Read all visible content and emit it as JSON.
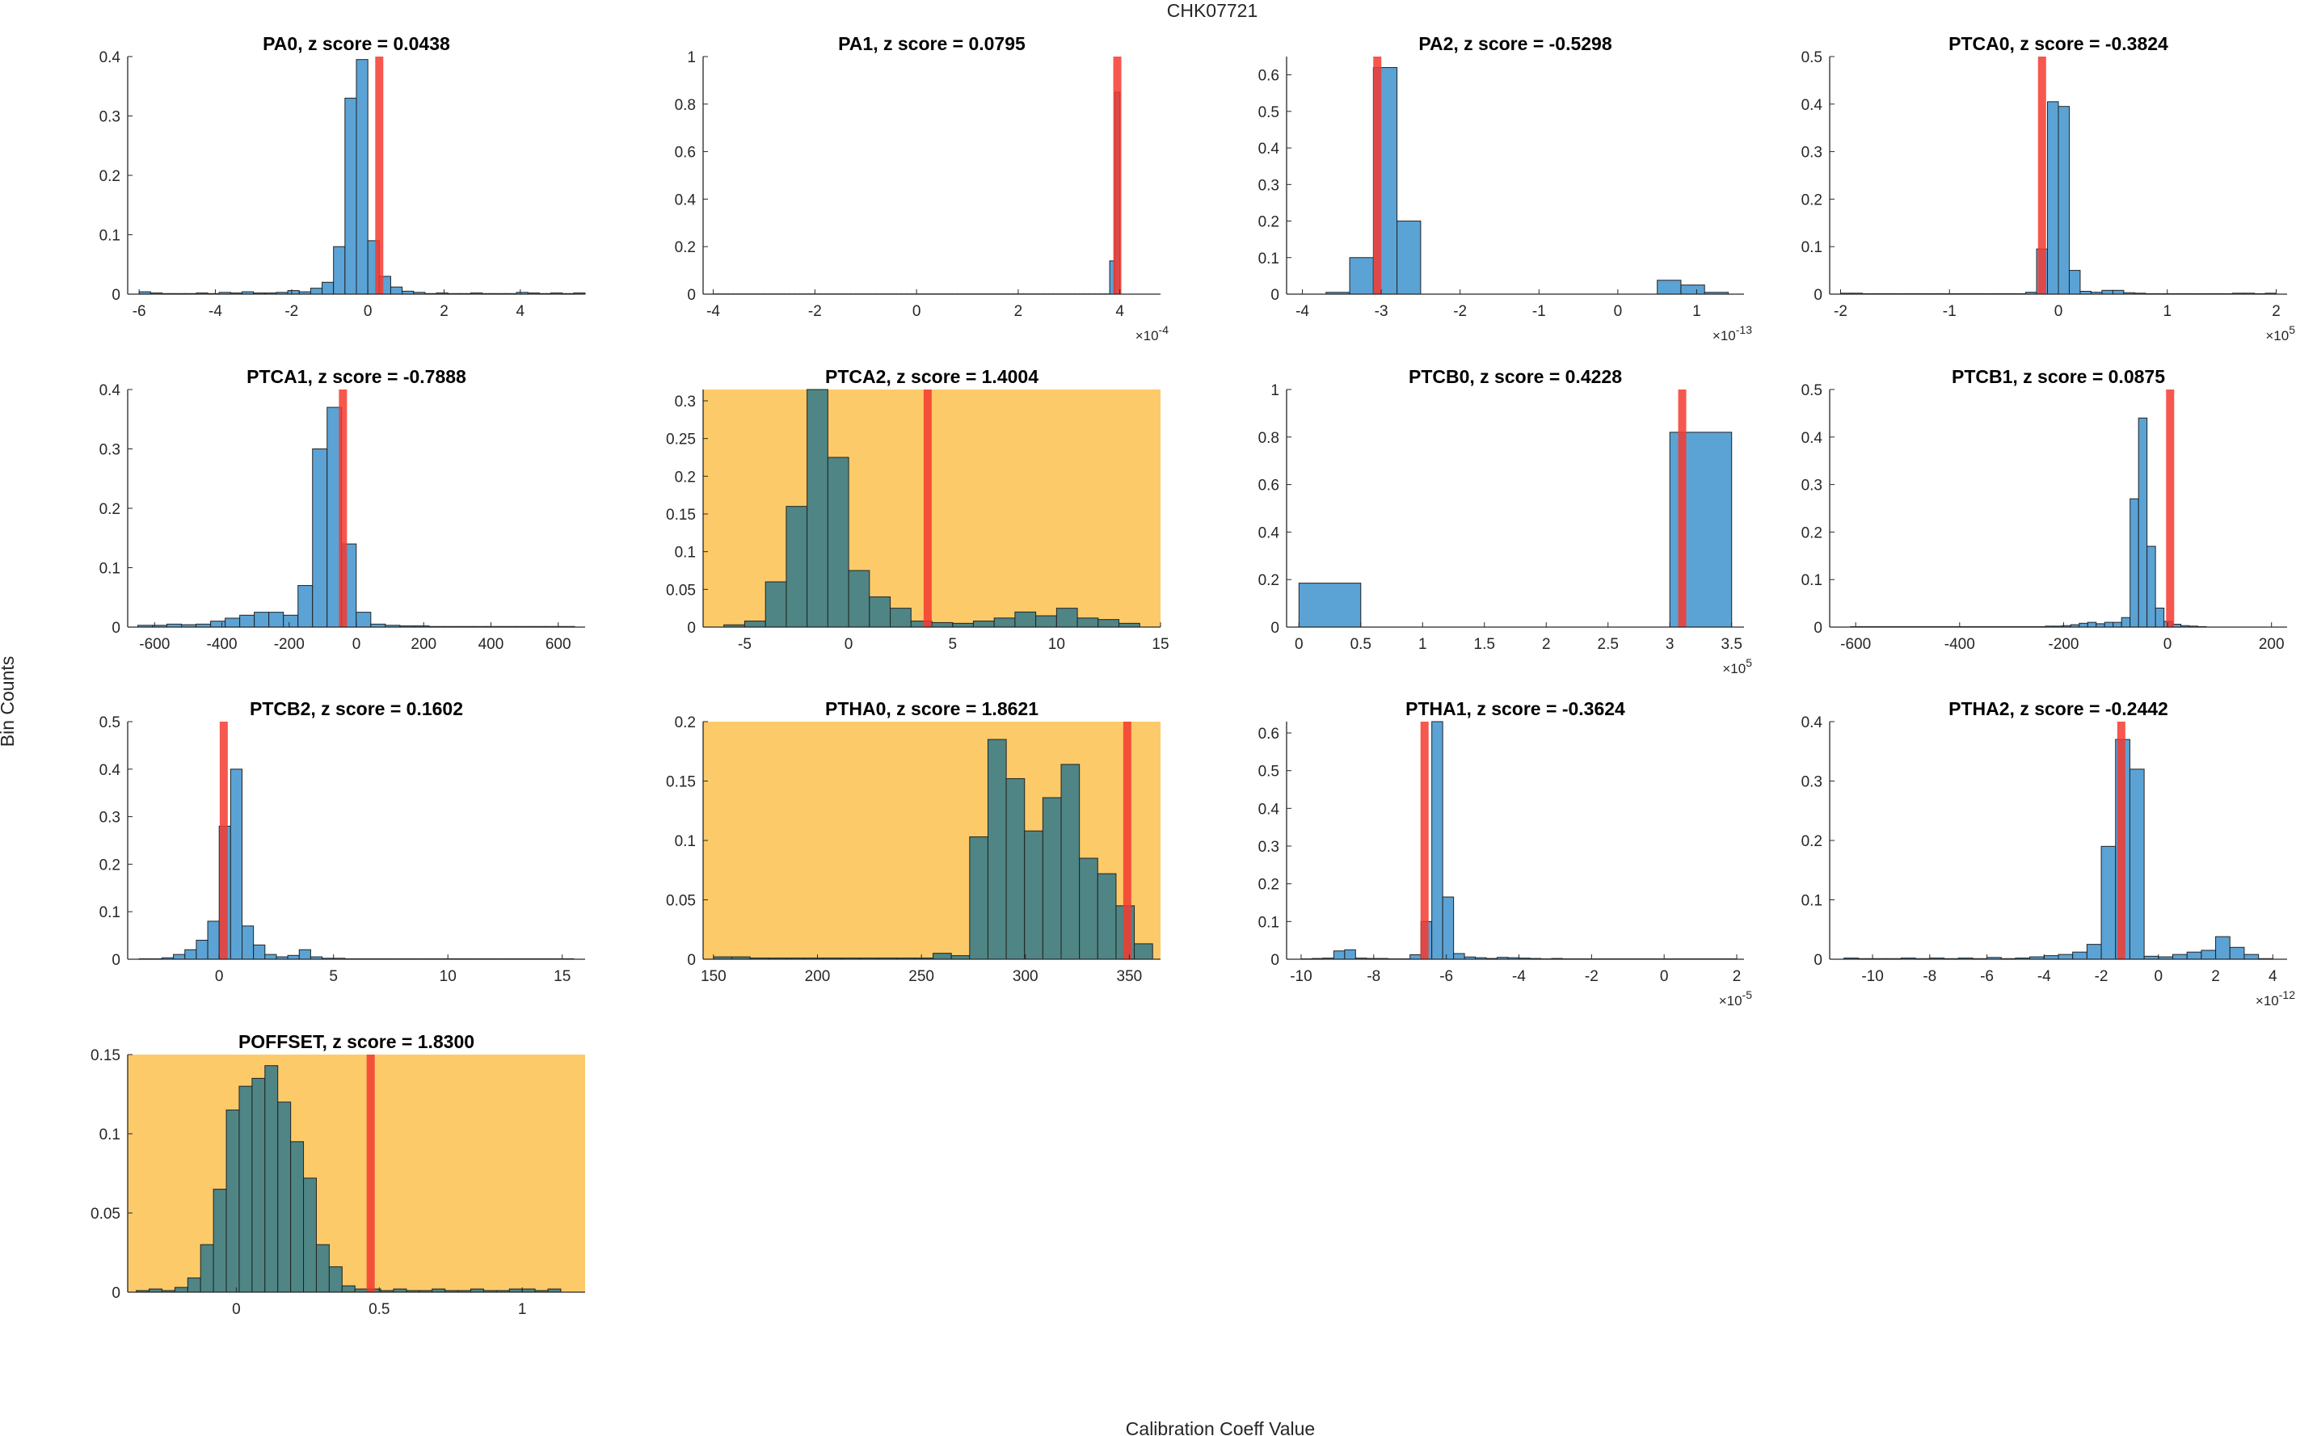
{
  "figure": {
    "title": "CHK07721",
    "xlabel": "Calibration Coeff Value",
    "ylabel": "Bin Counts",
    "colors": {
      "bar": "#5ba3d5",
      "bar_flagged": "#4f8585",
      "bar_edge": "#222222",
      "flag_background": "#fdca6a",
      "marker": "#f53a2f",
      "axis": "#262626"
    }
  },
  "chart_data": [
    {
      "type": "bar",
      "title": "PA0, z score = 0.0438",
      "flagged": false,
      "xlim": [
        -6.3,
        5.7
      ],
      "ylim": [
        0,
        0.4
      ],
      "xticks": [
        -6,
        -4,
        -2,
        0,
        2,
        4
      ],
      "xtick_labels": [
        "-6",
        "-4",
        "-2",
        "0",
        "2",
        "4"
      ],
      "yticks": [
        0,
        0.1,
        0.2,
        0.3,
        0.4
      ],
      "ytick_labels": [
        "0",
        "0.1",
        "0.2",
        "0.3",
        "0.4"
      ],
      "exponent": "",
      "bin_start": -6,
      "bin_width": 0.3,
      "values": [
        0.004,
        0.002,
        0.001,
        0.001,
        0.001,
        0.002,
        0.001,
        0.003,
        0.002,
        0.004,
        0.002,
        0.002,
        0.003,
        0.006,
        0.004,
        0.01,
        0.02,
        0.08,
        0.33,
        0.395,
        0.09,
        0.03,
        0.012,
        0.005,
        0.003,
        0.001,
        0.002,
        0.001,
        0.001,
        0.002,
        0.001,
        0.001,
        0.001,
        0.003,
        0.002,
        0.001,
        0.002,
        0.001,
        0.002
      ],
      "marker": 0.3
    },
    {
      "type": "bar",
      "title": "PA1, z score = 0.0795",
      "flagged": false,
      "xlim": [
        -4.2,
        4.8
      ],
      "ylim": [
        0,
        1
      ],
      "xticks": [
        -4,
        -2,
        0,
        2,
        4
      ],
      "xtick_labels": [
        "-4",
        "-2",
        "0",
        "2",
        "4"
      ],
      "yticks": [
        0,
        0.2,
        0.4,
        0.6,
        0.8,
        1
      ],
      "ytick_labels": [
        "0",
        "0.2",
        "0.4",
        "0.6",
        "0.8",
        "1"
      ],
      "exponent": "×10-4",
      "bin_start": -4,
      "bin_width": 0.1,
      "values": [
        0.001,
        0.001,
        0.001,
        0.001,
        0.001,
        0.001,
        0.001,
        0.001,
        0.001,
        0.001,
        0.001,
        0.001,
        0.001,
        0.001,
        0.001,
        0.001,
        0.001,
        0.001,
        0.001,
        0.001,
        0.001,
        0.001,
        0.001,
        0.001,
        0.001,
        0.001,
        0.001,
        0.001,
        0.001,
        0.001,
        0.001,
        0.001,
        0.001,
        0.001,
        0.001,
        0.001,
        0.001,
        0.001,
        0.001,
        0.001,
        0.001,
        0.001,
        0.001,
        0.001,
        0.001,
        0.001,
        0.001,
        0.001,
        0.001,
        0.001,
        0.001,
        0.001,
        0.001,
        0.001,
        0.001,
        0.001,
        0.001,
        0.001,
        0.001,
        0.001,
        0.001,
        0.001,
        0.001,
        0.001,
        0.001,
        0.001,
        0.001,
        0.001,
        0.001,
        0.001,
        0.001,
        0.001,
        0.001,
        0.001,
        0.001,
        0.001,
        0.001,
        0.001,
        0.14,
        0.85
      ],
      "marker": 3.95
    },
    {
      "type": "bar",
      "title": "PA2, z score = -0.5298",
      "flagged": false,
      "xlim": [
        -4.2,
        1.6
      ],
      "ylim": [
        0,
        0.65
      ],
      "xticks": [
        -4,
        -3,
        -2,
        -1,
        0,
        1
      ],
      "xtick_labels": [
        "-4",
        "-3",
        "-2",
        "-1",
        "0",
        "1"
      ],
      "yticks": [
        0,
        0.1,
        0.2,
        0.3,
        0.4,
        0.5,
        0.6
      ],
      "ytick_labels": [
        "0",
        "0.1",
        "0.2",
        "0.3",
        "0.4",
        "0.5",
        "0.6"
      ],
      "exponent": "×10-13",
      "bin_start": -3.7,
      "bin_width": 0.3,
      "values": [
        0.005,
        0.1,
        0.62,
        0.2,
        0,
        0,
        0,
        0,
        0,
        0,
        0,
        0,
        0,
        0,
        0.038,
        0.025,
        0.005
      ],
      "marker": -3.05
    },
    {
      "type": "bar",
      "title": "PTCA0, z score = -0.3824",
      "flagged": false,
      "xlim": [
        -2.1,
        2.1
      ],
      "ylim": [
        0,
        0.5
      ],
      "xticks": [
        -2,
        -1,
        0,
        1,
        2
      ],
      "xtick_labels": [
        "-2",
        "-1",
        "0",
        "1",
        "2"
      ],
      "yticks": [
        0,
        0.1,
        0.2,
        0.3,
        0.4,
        0.5
      ],
      "ytick_labels": [
        "0",
        "0.1",
        "0.2",
        "0.3",
        "0.4",
        "0.5"
      ],
      "exponent": "×10^5",
      "bin_start": -2,
      "bin_width": 0.1,
      "values": [
        0.002,
        0.002,
        0.001,
        0.001,
        0.001,
        0.001,
        0.001,
        0.001,
        0.001,
        0.001,
        0.001,
        0.001,
        0.001,
        0.001,
        0.001,
        0.001,
        0.001,
        0.004,
        0.095,
        0.405,
        0.395,
        0.05,
        0.006,
        0.004,
        0.008,
        0.008,
        0.003,
        0.002,
        0.001,
        0.001,
        0.001,
        0.001,
        0.001,
        0.001,
        0.001,
        0.001,
        0.002,
        0.002,
        0.001,
        0.002
      ],
      "marker": -0.15
    },
    {
      "type": "bar",
      "title": "PTCA1, z score = -0.7888",
      "flagged": false,
      "xlim": [
        -680,
        680
      ],
      "ylim": [
        0,
        0.4
      ],
      "xticks": [
        -600,
        -400,
        -200,
        0,
        200,
        400,
        600
      ],
      "xtick_labels": [
        "-600",
        "-400",
        "-200",
        "0",
        "200",
        "400",
        "600"
      ],
      "yticks": [
        0,
        0.1,
        0.2,
        0.3,
        0.4
      ],
      "ytick_labels": [
        "0",
        "0.1",
        "0.2",
        "0.3",
        "0.4"
      ],
      "exponent": "",
      "bin_start": -650,
      "bin_width": 43.3,
      "values": [
        0.003,
        0.003,
        0.005,
        0.004,
        0.005,
        0.01,
        0.015,
        0.02,
        0.025,
        0.025,
        0.02,
        0.07,
        0.3,
        0.37,
        0.14,
        0.025,
        0.005,
        0.003,
        0.002,
        0.002,
        0.001,
        0.001,
        0.001,
        0.001,
        0.001,
        0.001,
        0.001,
        0.001,
        0.001,
        0.001
      ],
      "marker": -40
    },
    {
      "type": "bar",
      "title": "PTCA2, z score = 1.4004",
      "flagged": true,
      "xlim": [
        -7,
        15
      ],
      "ylim": [
        0,
        0.315
      ],
      "xticks": [
        -5,
        0,
        5,
        10,
        15
      ],
      "xtick_labels": [
        "-5",
        "0",
        "5",
        "10",
        "15"
      ],
      "yticks": [
        0,
        0.05,
        0.1,
        0.15,
        0.2,
        0.25,
        0.3
      ],
      "ytick_labels": [
        "0",
        "0.05",
        "0.1",
        "0.15",
        "0.2",
        "0.25",
        "0.3"
      ],
      "exponent": "",
      "bin_start": -6,
      "bin_width": 1,
      "values": [
        0.003,
        0.008,
        0.06,
        0.16,
        0.315,
        0.225,
        0.075,
        0.04,
        0.025,
        0.008,
        0.006,
        0.005,
        0.008,
        0.012,
        0.02,
        0.015,
        0.025,
        0.012,
        0.01,
        0.005
      ],
      "marker": 3.8
    },
    {
      "type": "bar",
      "title": "PTCB0, z score = 0.4228",
      "flagged": false,
      "xlim": [
        -0.1,
        3.6
      ],
      "ylim": [
        0,
        1
      ],
      "xticks": [
        0,
        0.5,
        1,
        1.5,
        2,
        2.5,
        3,
        3.5
      ],
      "xtick_labels": [
        "0",
        "0.5",
        "1",
        "1.5",
        "2",
        "2.5",
        "3",
        "3.5"
      ],
      "yticks": [
        0,
        0.2,
        0.4,
        0.6,
        0.8,
        1
      ],
      "ytick_labels": [
        "0",
        "0.2",
        "0.4",
        "0.6",
        "0.8",
        "1"
      ],
      "exponent": "×10^5",
      "bin_start": 0,
      "bin_width": 0.5,
      "values": [
        0.185,
        0,
        0,
        0,
        0,
        0,
        0.82
      ],
      "marker": 3.1
    },
    {
      "type": "bar",
      "title": "PTCB1, z score = 0.0875",
      "flagged": false,
      "xlim": [
        -650,
        230
      ],
      "ylim": [
        0,
        0.5
      ],
      "xticks": [
        -600,
        -400,
        -200,
        0,
        200
      ],
      "xtick_labels": [
        "-600",
        "-400",
        "-200",
        "0",
        "200"
      ],
      "yticks": [
        0,
        0.1,
        0.2,
        0.3,
        0.4,
        0.5
      ],
      "ytick_labels": [
        "0",
        "0.1",
        "0.2",
        "0.3",
        "0.4",
        "0.5"
      ],
      "exponent": "",
      "bin_start": -610,
      "bin_width": 16.3,
      "values": [
        0.001,
        0.001,
        0.001,
        0.001,
        0.001,
        0.001,
        0.001,
        0.001,
        0.001,
        0.001,
        0.001,
        0.001,
        0.001,
        0.001,
        0.001,
        0.001,
        0.001,
        0.001,
        0.001,
        0.001,
        0.001,
        0.001,
        0.001,
        0.002,
        0.002,
        0.003,
        0.005,
        0.008,
        0.01,
        0.007,
        0.01,
        0.01,
        0.02,
        0.27,
        0.44,
        0.17,
        0.04,
        0.012,
        0.006,
        0.003,
        0.002,
        0.001
      ],
      "marker": 5
    },
    {
      "type": "bar",
      "title": "PTCB2, z score = 0.1602",
      "flagged": false,
      "xlim": [
        -4,
        16
      ],
      "ylim": [
        0,
        0.5
      ],
      "xticks": [
        0,
        5,
        10,
        15
      ],
      "xtick_labels": [
        "0",
        "5",
        "10",
        "15"
      ],
      "yticks": [
        0,
        0.1,
        0.2,
        0.3,
        0.4,
        0.5
      ],
      "ytick_labels": [
        "0",
        "0.1",
        "0.2",
        "0.3",
        "0.4",
        "0.5"
      ],
      "exponent": "",
      "bin_start": -3.5,
      "bin_width": 0.5,
      "values": [
        0.001,
        0.001,
        0.003,
        0.01,
        0.02,
        0.04,
        0.08,
        0.28,
        0.4,
        0.07,
        0.03,
        0.01,
        0.005,
        0.008,
        0.02,
        0.005,
        0.002,
        0.002,
        0.001,
        0.001,
        0.001,
        0.001,
        0.001,
        0.001,
        0.001,
        0.001,
        0.001,
        0.001,
        0.001,
        0.001,
        0.001,
        0.001,
        0.001,
        0.001,
        0.001,
        0.001,
        0.001,
        0.001
      ],
      "marker": 0.2
    },
    {
      "type": "bar",
      "title": "PTHA0, z score = 1.8621",
      "flagged": true,
      "xlim": [
        145,
        365
      ],
      "ylim": [
        0,
        0.2
      ],
      "xticks": [
        150,
        200,
        250,
        300,
        350
      ],
      "xtick_labels": [
        "150",
        "200",
        "250",
        "300",
        "350"
      ],
      "yticks": [
        0,
        0.05,
        0.1,
        0.15,
        0.2
      ],
      "ytick_labels": [
        "0",
        "0.05",
        "0.1",
        "0.15",
        "0.2"
      ],
      "exponent": "",
      "bin_start": 150,
      "bin_width": 8.8,
      "values": [
        0.002,
        0.002,
        0.001,
        0.001,
        0.001,
        0.001,
        0.001,
        0.001,
        0.001,
        0.001,
        0.001,
        0.001,
        0.005,
        0.003,
        0.103,
        0.185,
        0.152,
        0.108,
        0.136,
        0.164,
        0.085,
        0.072,
        0.045,
        0.013
      ],
      "marker": 349
    },
    {
      "type": "bar",
      "title": "PTHA1, z score = -0.3624",
      "flagged": false,
      "xlim": [
        -10.4,
        2.2
      ],
      "ylim": [
        0,
        0.63
      ],
      "xticks": [
        -10,
        -8,
        -6,
        -4,
        -2,
        0,
        2
      ],
      "xtick_labels": [
        "-10",
        "-8",
        "-6",
        "-4",
        "-2",
        "0",
        "2"
      ],
      "yticks": [
        0,
        0.1,
        0.2,
        0.3,
        0.4,
        0.5,
        0.6
      ],
      "ytick_labels": [
        "0",
        "0.1",
        "0.2",
        "0.3",
        "0.4",
        "0.5",
        "0.6"
      ],
      "exponent": "×10-5",
      "bin_start": -10,
      "bin_width": 0.3,
      "values": [
        0.001,
        0.002,
        0.003,
        0.022,
        0.025,
        0.003,
        0.002,
        0.002,
        0.001,
        0.001,
        0.012,
        0.1,
        0.63,
        0.165,
        0.015,
        0.006,
        0.004,
        0.002,
        0.005,
        0.004,
        0.003,
        0.002,
        0.001,
        0.002,
        0.001,
        0.001,
        0.001,
        0.001,
        0.001,
        0.001,
        0.001,
        0.001,
        0.001,
        0.001,
        0.001,
        0.001,
        0.001,
        0.001,
        0.001,
        0.001
      ],
      "marker": -6.6
    },
    {
      "type": "bar",
      "title": "PTHA2, z score = -0.2442",
      "flagged": false,
      "xlim": [
        -11.5,
        4.5
      ],
      "ylim": [
        0,
        0.4
      ],
      "xticks": [
        -10,
        -8,
        -6,
        -4,
        -2,
        0,
        2,
        4
      ],
      "xtick_labels": [
        "-10",
        "-8",
        "-6",
        "-4",
        "-2",
        "0",
        "2",
        "4"
      ],
      "yticks": [
        0,
        0.1,
        0.2,
        0.3,
        0.4
      ],
      "ytick_labels": [
        "0",
        "0.1",
        "0.2",
        "0.3",
        "0.4"
      ],
      "exponent": "×10-12",
      "bin_start": -11,
      "bin_width": 0.5,
      "values": [
        0.002,
        0.001,
        0.001,
        0.001,
        0.002,
        0.001,
        0.002,
        0.001,
        0.002,
        0.001,
        0.003,
        0.001,
        0.002,
        0.004,
        0.006,
        0.008,
        0.012,
        0.025,
        0.19,
        0.37,
        0.32,
        0.005,
        0.004,
        0.008,
        0.012,
        0.015,
        0.038,
        0.02,
        0.008,
        0.001
      ],
      "marker": -1.3
    },
    {
      "type": "bar",
      "title": "POFFSET, z score = 1.8300",
      "flagged": true,
      "xlim": [
        -0.38,
        1.22
      ],
      "ylim": [
        0,
        0.15
      ],
      "xticks": [
        0,
        0.5,
        1
      ],
      "xtick_labels": [
        "0",
        "0.5",
        "1"
      ],
      "yticks": [
        0,
        0.05,
        0.1,
        0.15
      ],
      "ytick_labels": [
        "0",
        "0.05",
        "0.1",
        "0.15"
      ],
      "exponent": "",
      "bin_start": -0.35,
      "bin_width": 0.045,
      "values": [
        0.001,
        0.002,
        0.001,
        0.003,
        0.009,
        0.03,
        0.065,
        0.115,
        0.13,
        0.135,
        0.143,
        0.12,
        0.095,
        0.072,
        0.03,
        0.016,
        0.004,
        0.002,
        0.002,
        0.001,
        0.002,
        0.001,
        0.001,
        0.002,
        0.001,
        0.001,
        0.002,
        0.001,
        0.001,
        0.002,
        0.002,
        0.001,
        0.002
      ],
      "marker": 0.47
    }
  ]
}
